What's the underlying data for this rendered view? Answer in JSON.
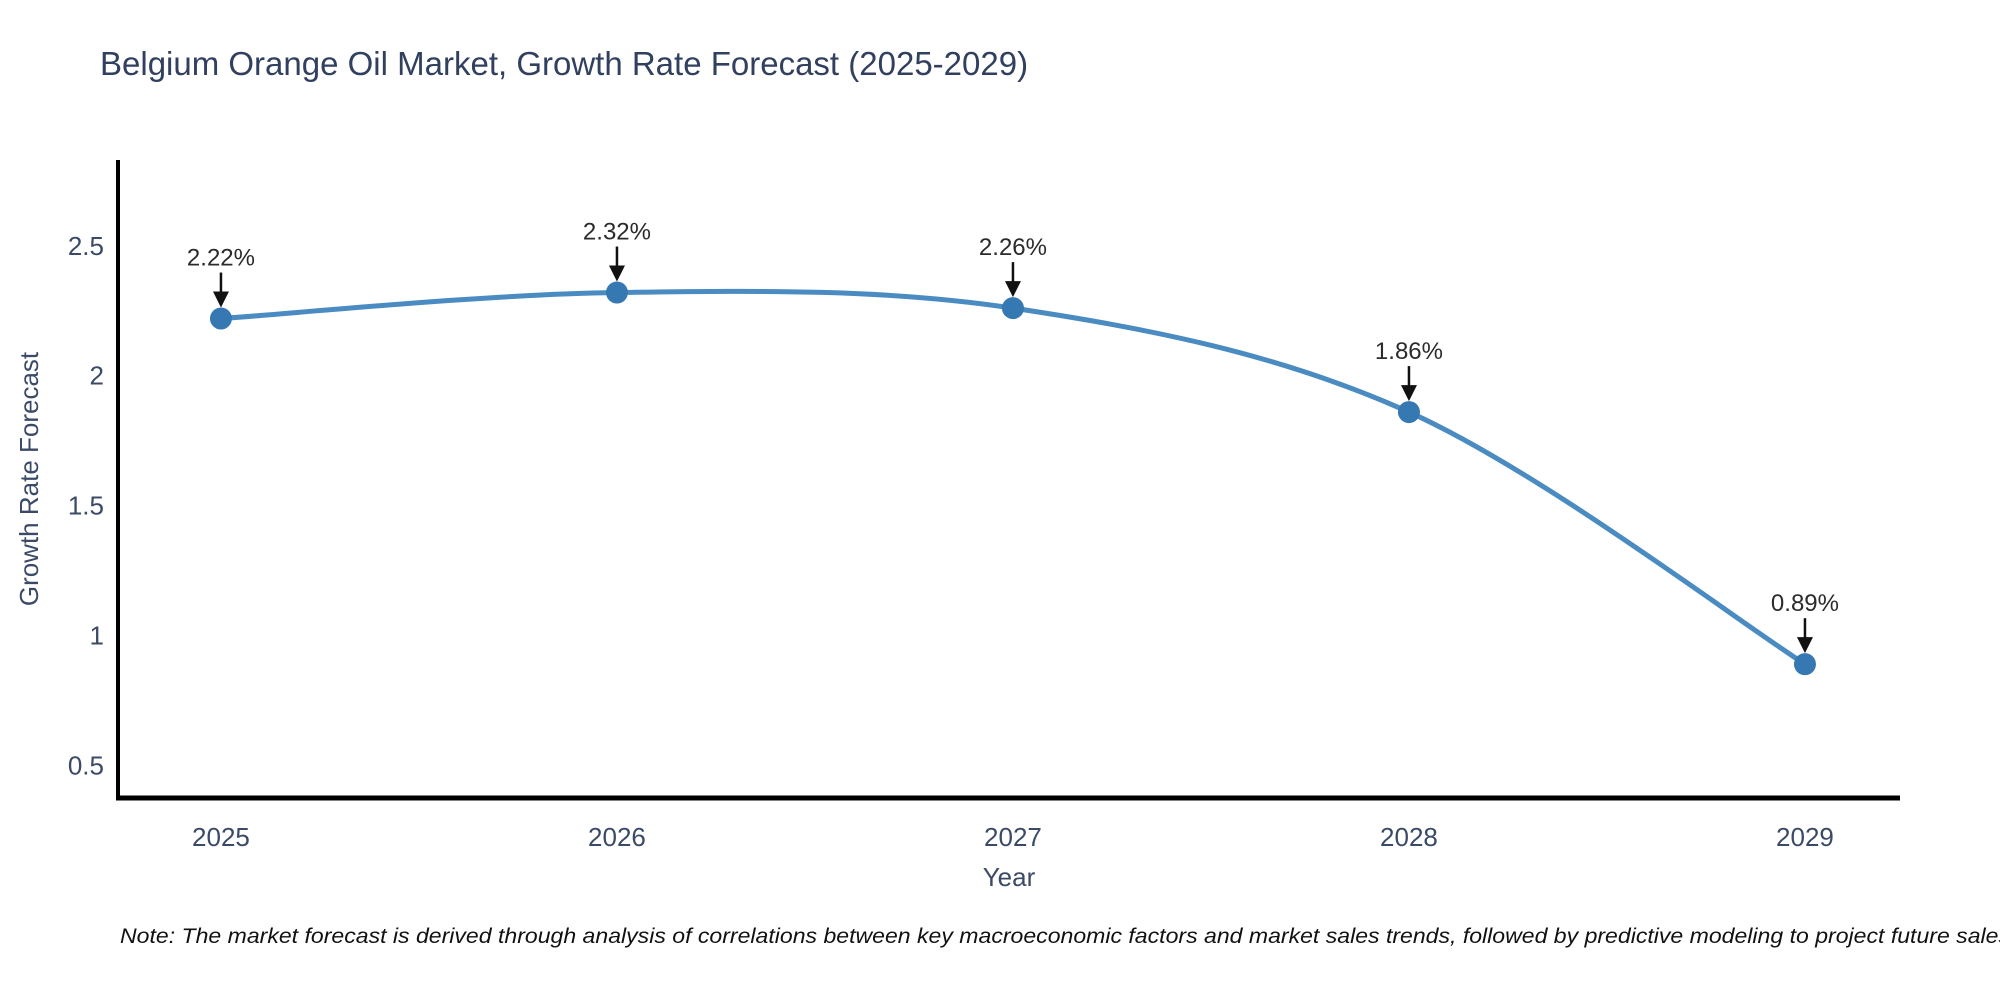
{
  "chart_data": {
    "type": "line",
    "title": "Belgium Orange Oil Market, Growth Rate Forecast (2025-2029)",
    "xlabel": "Year",
    "ylabel": "Growth Rate Forecast",
    "x": [
      2025,
      2026,
      2027,
      2028,
      2029
    ],
    "series": [
      {
        "name": "Growth Rate Forecast",
        "values": [
          2.22,
          2.32,
          2.26,
          1.86,
          0.89
        ],
        "point_labels": [
          "2.22%",
          "2.32%",
          "2.26%",
          "1.86%",
          "0.89%"
        ]
      }
    ],
    "x_tick_labels": [
      "2025",
      "2026",
      "2027",
      "2028",
      "2029"
    ],
    "y_ticks": [
      0.5,
      1,
      1.5,
      2,
      2.5
    ],
    "y_tick_labels": [
      "0.5",
      "1",
      "1.5",
      "2",
      "2.5"
    ],
    "xlim": [
      2024.74,
      2029.24
    ],
    "ylim": [
      0.375,
      2.83
    ],
    "line_shape": "spline",
    "grid": false,
    "legend_position": "none",
    "colors": {
      "line": "#4a8bc2",
      "marker": "#3678b1",
      "axis": "#000000",
      "arrow": "#111111"
    },
    "note": "Note: The market forecast is derived through analysis of correlations between key macroeconomic factors and market sales trends, followed by predictive modeling to project future sales"
  }
}
